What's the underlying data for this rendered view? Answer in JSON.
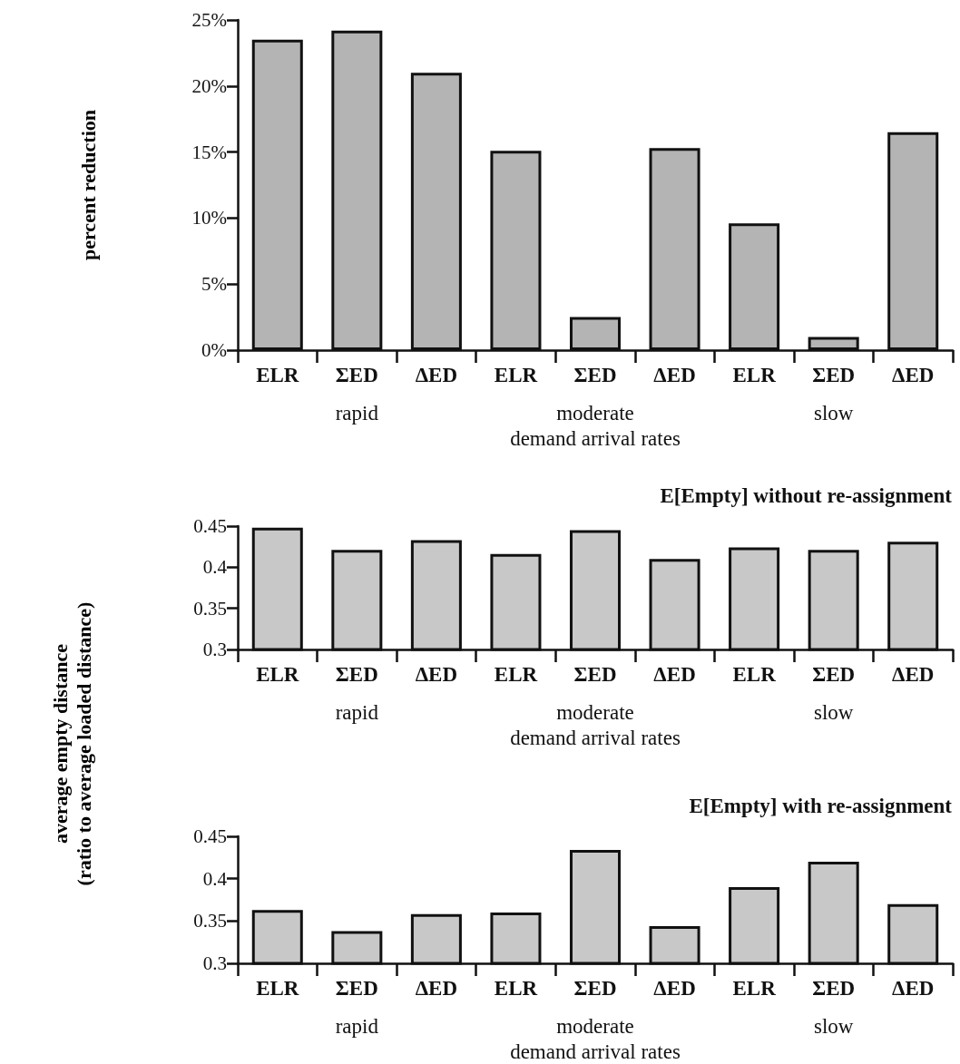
{
  "chart_data": [
    {
      "type": "bar",
      "ylabel": "percent reduction",
      "xlabel": "demand arrival rates",
      "annotations": [
        "rapid",
        "moderate",
        "slow"
      ],
      "categories": [
        "ELR",
        "ΣED",
        "ΔED",
        "ELR",
        "ΣED",
        "ΔED",
        "ELR",
        "ΣED",
        "ΔED"
      ],
      "values": [
        23.5,
        24.2,
        21.0,
        15.1,
        2.5,
        15.3,
        9.6,
        1.0,
        16.5
      ],
      "color": "#b4b4b4",
      "ylim": [
        0,
        25
      ],
      "yticks": [
        {
          "value": 0,
          "label": "0%"
        },
        {
          "value": 5,
          "label": "5%"
        },
        {
          "value": 10,
          "label": "10%"
        },
        {
          "value": 15,
          "label": "15%"
        },
        {
          "value": 20,
          "label": "20%"
        },
        {
          "value": 25,
          "label": "25%"
        }
      ],
      "grid": false
    },
    {
      "type": "bar",
      "title": "E[Empty] without re-assignment",
      "ylabel": "average empty distance\n(ratio to average loaded distance)",
      "xlabel": "demand arrival rates",
      "annotations": [
        "rapid",
        "moderate",
        "slow"
      ],
      "categories": [
        "ELR",
        "ΣED",
        "ΔED",
        "ELR",
        "ΣED",
        "ΔED",
        "ELR",
        "ΣED",
        "ΔED"
      ],
      "values": [
        0.448,
        0.421,
        0.433,
        0.416,
        0.445,
        0.41,
        0.424,
        0.421,
        0.431
      ],
      "color": "#c8c8c8",
      "ylim": [
        0.3,
        0.45
      ],
      "yticks": [
        0.3,
        0.35,
        0.4,
        0.45
      ],
      "grid": false
    },
    {
      "type": "bar",
      "title": "E[Empty] with re-assignment",
      "xlabel": "demand arrival rates",
      "annotations": [
        "rapid",
        "moderate",
        "slow"
      ],
      "categories": [
        "ELR",
        "ΣED",
        "ΔED",
        "ELR",
        "ΣED",
        "ΔED",
        "ELR",
        "ΣED",
        "ΔED"
      ],
      "values": [
        0.363,
        0.338,
        0.358,
        0.36,
        0.434,
        0.344,
        0.39,
        0.42,
        0.37
      ],
      "color": "#c8c8c8",
      "ylim": [
        0.3,
        0.45
      ],
      "yticks": [
        0.3,
        0.35,
        0.4,
        0.45
      ],
      "grid": false
    }
  ]
}
